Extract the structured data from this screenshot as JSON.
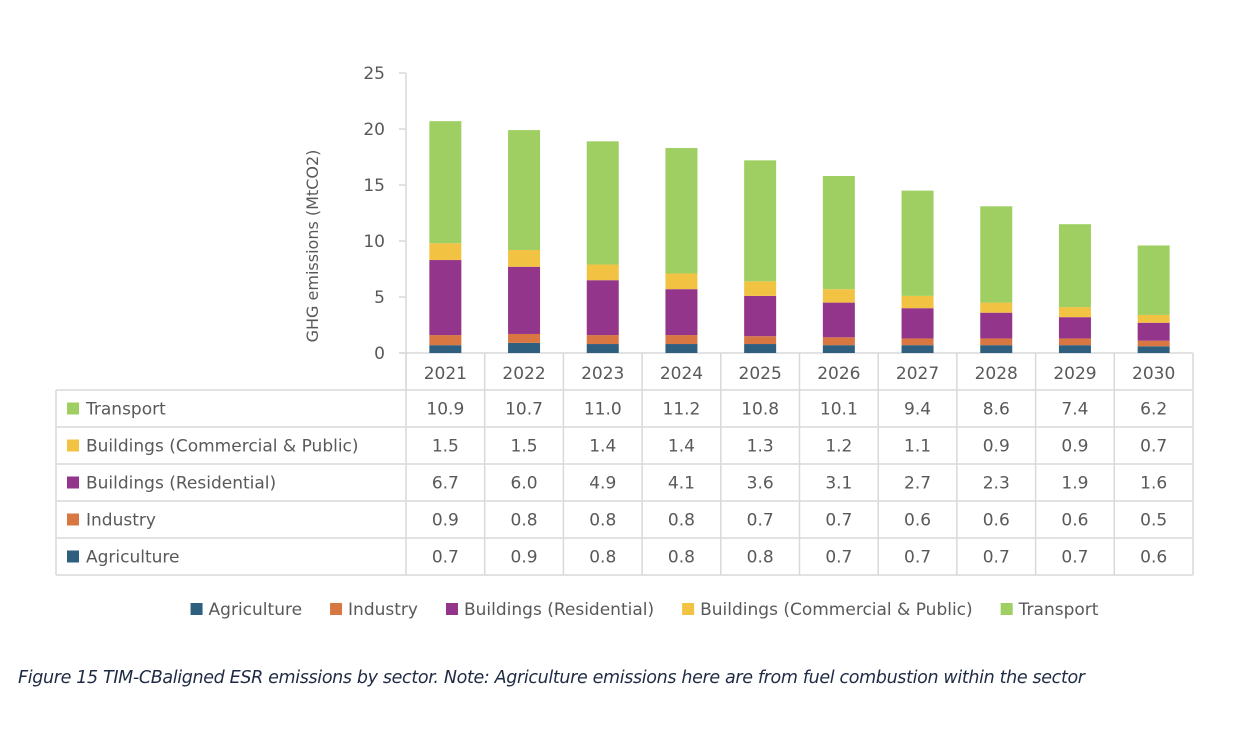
{
  "chart_data": {
    "type": "bar",
    "stacked": true,
    "title": "",
    "xlabel": "",
    "ylabel": "GHG emissions (MtCO2)",
    "ylim": [
      0,
      25
    ],
    "yticks": [
      0,
      5,
      10,
      15,
      20,
      25
    ],
    "ytick_labels": [
      "0",
      "5",
      "10",
      "15",
      "20",
      "25"
    ],
    "grid": false,
    "categories": [
      "2021",
      "2022",
      "2023",
      "2024",
      "2025",
      "2026",
      "2027",
      "2028",
      "2029",
      "2030"
    ],
    "series": [
      {
        "name": "Agriculture",
        "color": "#2e5f7f",
        "values": [
          0.7,
          0.9,
          0.8,
          0.8,
          0.8,
          0.7,
          0.7,
          0.7,
          0.7,
          0.6
        ],
        "value_labels": [
          "0.7",
          "0.9",
          "0.8",
          "0.8",
          "0.8",
          "0.7",
          "0.7",
          "0.7",
          "0.7",
          "0.6"
        ]
      },
      {
        "name": "Industry",
        "color": "#d97742",
        "values": [
          0.9,
          0.8,
          0.8,
          0.8,
          0.7,
          0.7,
          0.6,
          0.6,
          0.6,
          0.5
        ],
        "value_labels": [
          "0.9",
          "0.8",
          "0.8",
          "0.8",
          "0.7",
          "0.7",
          "0.6",
          "0.6",
          "0.6",
          "0.5"
        ]
      },
      {
        "name": "Buildings (Residential)",
        "color": "#92358b",
        "values": [
          6.7,
          6.0,
          4.9,
          4.1,
          3.6,
          3.1,
          2.7,
          2.3,
          1.9,
          1.6
        ],
        "value_labels": [
          "6.7",
          "6.0",
          "4.9",
          "4.1",
          "3.6",
          "3.1",
          "2.7",
          "2.3",
          "1.9",
          "1.6"
        ]
      },
      {
        "name": "Buildings (Commercial & Public)",
        "color": "#f2c242",
        "values": [
          1.5,
          1.5,
          1.4,
          1.4,
          1.3,
          1.2,
          1.1,
          0.9,
          0.9,
          0.7
        ],
        "value_labels": [
          "1.5",
          "1.5",
          "1.4",
          "1.4",
          "1.3",
          "1.2",
          "1.1",
          "0.9",
          "0.9",
          "0.7"
        ]
      },
      {
        "name": "Transport",
        "color": "#9fcf62",
        "values": [
          10.9,
          10.7,
          11.0,
          11.2,
          10.8,
          10.1,
          9.4,
          8.6,
          7.4,
          6.2
        ],
        "value_labels": [
          "10.9",
          "10.7",
          "11.0",
          "11.2",
          "10.8",
          "10.1",
          "9.4",
          "8.6",
          "7.4",
          "6.2"
        ]
      }
    ],
    "data_table": {
      "shown": true,
      "row_order": [
        "Transport",
        "Buildings (Commercial & Public)",
        "Buildings (Residential)",
        "Industry",
        "Agriculture"
      ]
    },
    "legend": {
      "placement": "bottom",
      "entries": [
        "Agriculture",
        "Industry",
        "Buildings (Residential)",
        "Buildings (Commercial & Public)",
        "Transport"
      ]
    }
  },
  "caption": "Figure 15 TIM-CBaligned ESR emissions by sector. Note: Agriculture emissions here are from fuel combustion within the sector"
}
